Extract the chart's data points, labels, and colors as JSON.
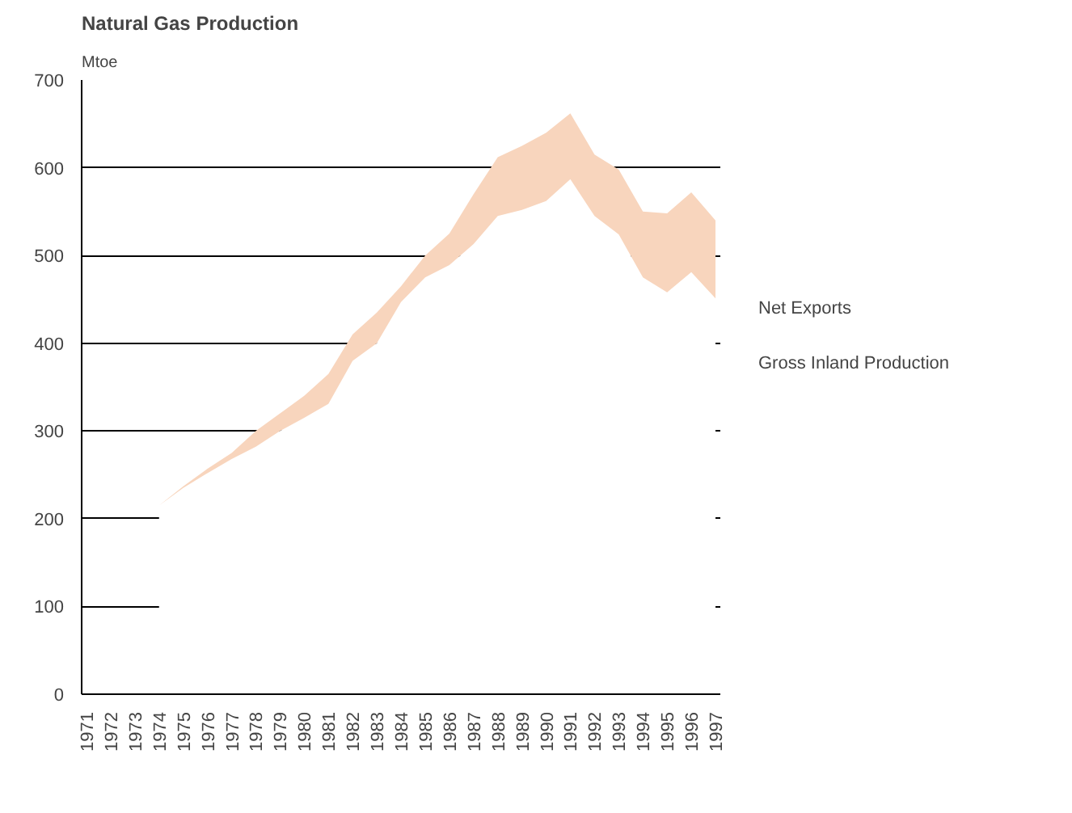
{
  "chart_data": {
    "type": "area",
    "stacked": true,
    "title": "Natural Gas Production",
    "ylabel": "Mtoe",
    "categories": [
      "1971",
      "1972",
      "1973",
      "1974",
      "1975",
      "1976",
      "1977",
      "1978",
      "1979",
      "1980",
      "1981",
      "1982",
      "1983",
      "1984",
      "1985",
      "1986",
      "1987",
      "1988",
      "1989",
      "1990",
      "1991",
      "1992",
      "1993",
      "1994",
      "1995",
      "1996",
      "1997"
    ],
    "series": [
      {
        "name": "Gross Inland Production",
        "color": "#ffffff",
        "values": [
          null,
          null,
          null,
          215,
          235,
          252,
          268,
          282,
          300,
          315,
          331,
          380,
          400,
          447,
          475,
          489,
          513,
          545,
          552,
          562,
          587,
          545,
          524,
          475,
          458,
          481,
          451
        ]
      },
      {
        "name": "Net Exports",
        "color": "#f8d5bd",
        "values": [
          null,
          null,
          null,
          0,
          2,
          5,
          7,
          18,
          20,
          25,
          34,
          30,
          35,
          18,
          25,
          36,
          57,
          67,
          73,
          78,
          75,
          70,
          74,
          75,
          90,
          91,
          89
        ]
      }
    ],
    "ylim": [
      0,
      700
    ],
    "yticks": [
      0,
      100,
      200,
      300,
      400,
      500,
      600,
      700
    ],
    "grid": "y",
    "legend": "right"
  }
}
